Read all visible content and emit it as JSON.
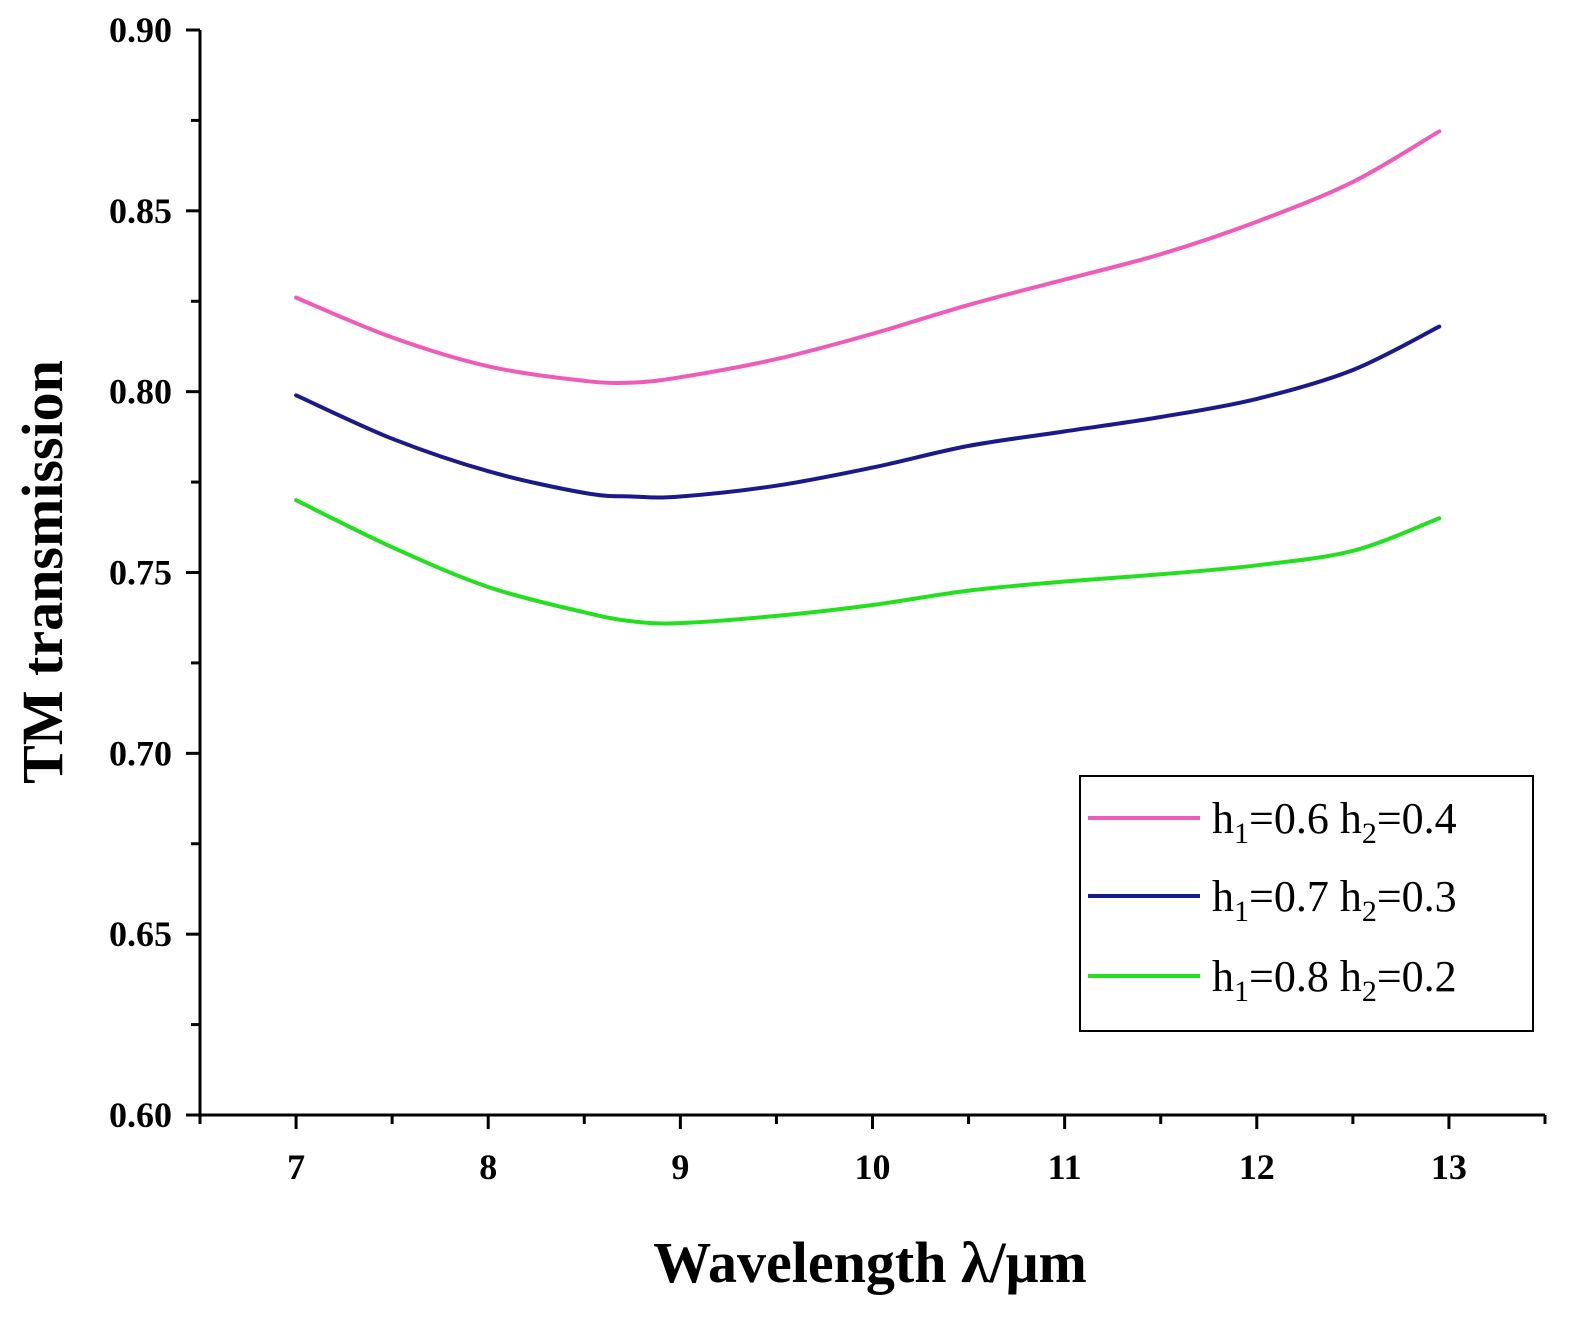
{
  "chart_data": {
    "type": "line",
    "title": "",
    "xlabel": "Wavelength λ/μm",
    "ylabel": "TM transmission",
    "xlim": [
      6.5,
      13.5
    ],
    "ylim": [
      0.6,
      0.9
    ],
    "xticks": [
      7,
      8,
      9,
      10,
      11,
      12,
      13
    ],
    "xtick_labels": [
      "7",
      "8",
      "9",
      "10",
      "11",
      "12",
      "13"
    ],
    "yticks": [
      0.6,
      0.65,
      0.7,
      0.75,
      0.8,
      0.85,
      0.9
    ],
    "ytick_labels": [
      "0.60",
      "0.65",
      "0.70",
      "0.75",
      "0.80",
      "0.85",
      "0.90"
    ],
    "grid": false,
    "legend_position": "bottom-right",
    "x": [
      7.0,
      7.5,
      8.0,
      8.5,
      8.75,
      9.0,
      9.5,
      10.0,
      10.5,
      11.0,
      11.5,
      12.0,
      12.5,
      12.95
    ],
    "series": [
      {
        "name": "h1=0.6 h2=0.4",
        "legend": {
          "h1": "0.6",
          "h2": "0.4"
        },
        "color": "#f05ab9",
        "values": [
          0.826,
          0.815,
          0.807,
          0.803,
          0.8025,
          0.804,
          0.809,
          0.816,
          0.824,
          0.831,
          0.838,
          0.847,
          0.858,
          0.872
        ]
      },
      {
        "name": "h1=0.7 h2=0.3",
        "legend": {
          "h1": "0.7",
          "h2": "0.3"
        },
        "color": "#1a1a8c",
        "values": [
          0.799,
          0.787,
          0.778,
          0.772,
          0.771,
          0.771,
          0.774,
          0.779,
          0.785,
          0.789,
          0.793,
          0.798,
          0.806,
          0.818
        ]
      },
      {
        "name": "h1=0.8 h2=0.2",
        "legend": {
          "h1": "0.8",
          "h2": "0.2"
        },
        "color": "#22e01e",
        "values": [
          0.77,
          0.757,
          0.746,
          0.739,
          0.7365,
          0.736,
          0.738,
          0.741,
          0.745,
          0.7475,
          0.7495,
          0.752,
          0.756,
          0.765
        ]
      }
    ]
  }
}
